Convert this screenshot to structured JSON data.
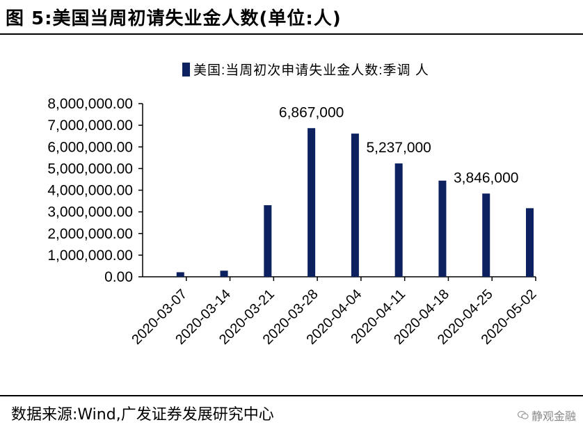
{
  "figure": {
    "title": "图 5:美国当周初请失业金人数(单位:人)",
    "source": "数据来源:Wind,广发证券发展研究中心",
    "watermark": "静观金融"
  },
  "colors": {
    "bar": "#0d2161",
    "axis": "#000000"
  },
  "icons": {
    "watermark": "wechat-icon"
  },
  "chart_data": {
    "type": "bar",
    "title": "",
    "xlabel": "",
    "ylabel": "",
    "legend": {
      "position": "top",
      "label": "美国:当周初次申请失业金人数:季调 人"
    },
    "categories": [
      "2020-03-07",
      "2020-03-14",
      "2020-03-21",
      "2020-03-28",
      "2020-04-04",
      "2020-04-11",
      "2020-04-18",
      "2020-04-25",
      "2020-05-02"
    ],
    "series": [
      {
        "name": "美国:当周初次申请失业金人数:季调 人",
        "values": [
          211000,
          282000,
          3307000,
          6867000,
          6615000,
          5237000,
          4442000,
          3846000,
          3169000
        ]
      }
    ],
    "data_labels": [
      {
        "index": 3,
        "text": "6,867,000"
      },
      {
        "index": 5,
        "text": "5,237,000"
      },
      {
        "index": 7,
        "text": "3,846,000"
      }
    ],
    "ylim": [
      0,
      8000000
    ],
    "yticks": [
      0,
      1000000,
      2000000,
      3000000,
      4000000,
      5000000,
      6000000,
      7000000,
      8000000
    ],
    "ytick_labels": [
      "0.00",
      "1,000,000.00",
      "2,000,000.00",
      "3,000,000.00",
      "4,000,000.00",
      "5,000,000.00",
      "6,000,000.00",
      "7,000,000.00",
      "8,000,000.00"
    ],
    "grid": false
  }
}
